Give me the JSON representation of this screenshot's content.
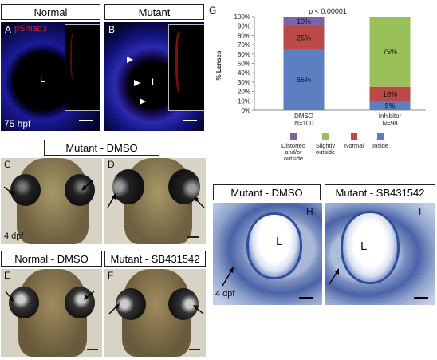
{
  "panel_headers": {
    "normal": "Normal",
    "mutant": "Mutant",
    "mutant_dmso": "Mutant - DMSO",
    "normal_dmso": "Normal - DMSO",
    "mutant_sb": "Mutant - SB431542",
    "mutant_dmso_hist": "Mutant - DMSO",
    "mutant_sb_hist": "Mutant - SB431542"
  },
  "panel_letters": {
    "A": "A",
    "B": "B",
    "C": "C",
    "D": "D",
    "E": "E",
    "F": "F",
    "G": "G",
    "H": "H",
    "I": "I"
  },
  "labels": {
    "pSmad3": "pSmad3",
    "hpf": "75 hpf",
    "dpf_c": "4 dpf",
    "dpf_h": "4 dpf",
    "lens_a": "L",
    "lens_b": "L",
    "lens_h": "L",
    "lens_i": "L"
  },
  "colors": {
    "inside": "#5b7fc0",
    "normal": "#b94a48",
    "slightly_outside": "#99c05a",
    "distorted": "#7d64a8"
  },
  "chart_data": {
    "type": "bar",
    "stacked": true,
    "title": "p < 0.00001",
    "ylabel": "% Lenses",
    "ylim": [
      0,
      100
    ],
    "yticks": [
      "0%",
      "10%",
      "20%",
      "30%",
      "40%",
      "50%",
      "60%",
      "70%",
      "80%",
      "90%",
      "100%"
    ],
    "categories": [
      "DMSO",
      "Inhibitor"
    ],
    "category_n": [
      "N=100",
      "N=98"
    ],
    "series": [
      {
        "name": "Inside",
        "values": [
          65,
          9
        ],
        "labels": [
          "65%",
          "9%"
        ]
      },
      {
        "name": "Normal",
        "values": [
          25,
          16
        ],
        "labels": [
          "25%",
          "16%"
        ]
      },
      {
        "name": "Slightly outside",
        "values": [
          0,
          75
        ],
        "labels": [
          "",
          "75%"
        ]
      },
      {
        "name": "Distorted and/or outside",
        "values": [
          10,
          0
        ],
        "labels": [
          "10%",
          ""
        ]
      }
    ],
    "legend": [
      {
        "key": "distorted",
        "lines": [
          "Distorted",
          "and/or",
          "outside"
        ]
      },
      {
        "key": "slightly_outside",
        "lines": [
          "Slightly",
          "outside"
        ]
      },
      {
        "key": "normal",
        "lines": [
          "Normal"
        ]
      },
      {
        "key": "inside",
        "lines": [
          "Inside"
        ]
      }
    ],
    "legend_position": "bottom"
  }
}
